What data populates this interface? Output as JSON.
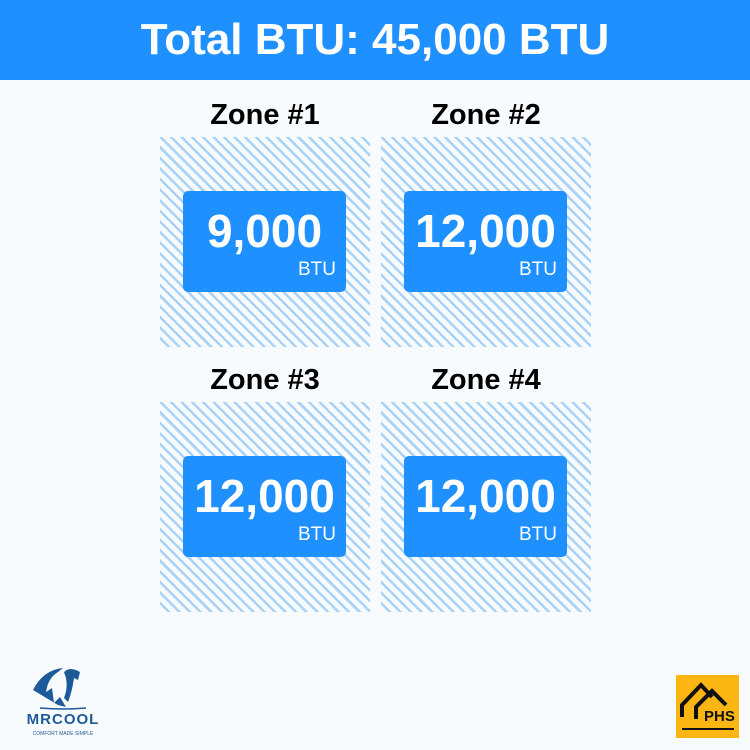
{
  "header": {
    "title": "Total BTU: 45,000 BTU"
  },
  "zones": [
    {
      "title": "Zone #1",
      "value": "9,000",
      "unit": "BTU"
    },
    {
      "title": "Zone #2",
      "value": "12,000",
      "unit": "BTU"
    },
    {
      "title": "Zone #3",
      "value": "12,000",
      "unit": "BTU"
    },
    {
      "title": "Zone #4",
      "value": "12,000",
      "unit": "BTU"
    }
  ],
  "logos": {
    "left": "MRCOOL",
    "left_tagline": "COMFORT MADE SIMPLE",
    "right": "PHS"
  },
  "colors": {
    "accent": "#1e90ff",
    "hatch": "#a9d2f7",
    "phs": "#fbb614",
    "mrcool": "#1d5a9a"
  }
}
